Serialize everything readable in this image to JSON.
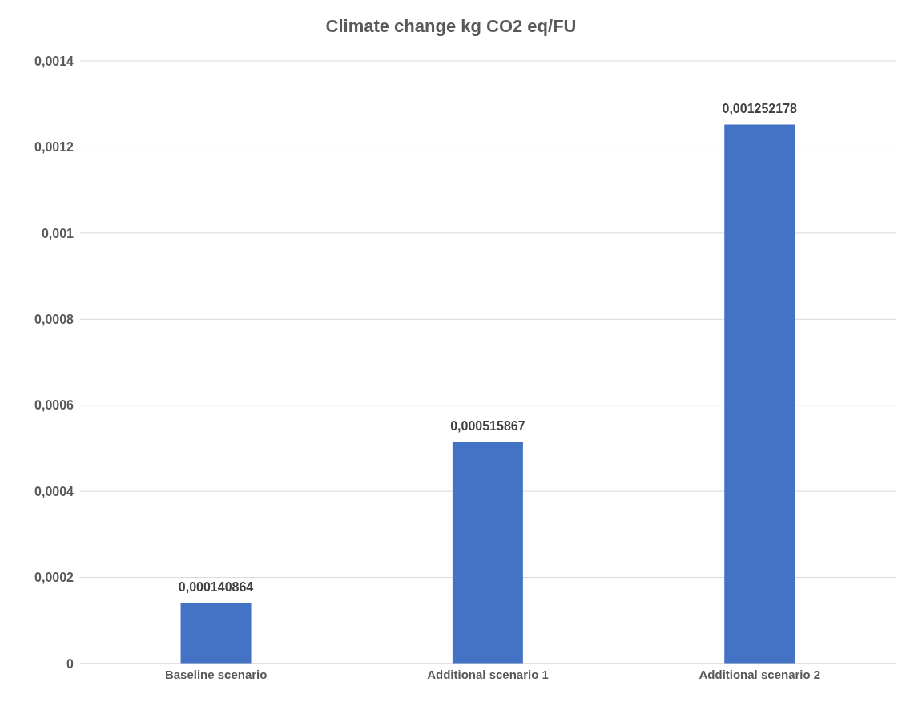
{
  "chart_data": {
    "type": "bar",
    "title": "Climate change kg CO2 eq/FU",
    "categories": [
      "Baseline scenario",
      "Additional scenario 1",
      "Additional scenario 2"
    ],
    "values": [
      0.000140864,
      0.000515867,
      0.001252178
    ],
    "value_labels": [
      "0,000140864",
      "0,000515867",
      "0,001252178"
    ],
    "color": "#4472c4",
    "ylim": [
      0,
      0.0014
    ],
    "yticks": [
      {
        "value": 0,
        "label": "0"
      },
      {
        "value": 0.0002,
        "label": "0,0002"
      },
      {
        "value": 0.0004,
        "label": "0,0004"
      },
      {
        "value": 0.0006,
        "label": "0,0006"
      },
      {
        "value": 0.0008,
        "label": "0,0008"
      },
      {
        "value": 0.001,
        "label": "0,001"
      },
      {
        "value": 0.0012,
        "label": "0,0012"
      },
      {
        "value": 0.0014,
        "label": "0,0014"
      }
    ],
    "grid": "y"
  }
}
